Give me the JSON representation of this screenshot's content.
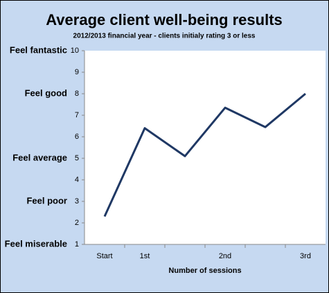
{
  "chart_data": {
    "type": "line",
    "title": "Average client well-being results",
    "subtitle": "2012/2013 financial year - clients initialy rating 3 or less",
    "x_label": "Number of sessions",
    "categories": [
      "Start",
      "1st",
      null,
      "2nd",
      null,
      "3rd"
    ],
    "series": [
      {
        "color": "#1f3864",
        "values": [
          2.3,
          6.4,
          5.1,
          7.35,
          6.45,
          8.0
        ]
      }
    ],
    "ylim": [
      1,
      10
    ],
    "yticks": [
      1,
      2,
      3,
      4,
      5,
      6,
      7,
      8,
      9,
      10
    ],
    "y_annotations": [
      {
        "value": 10,
        "label": "Feel fantastic"
      },
      {
        "value": 8,
        "label": "Feel good"
      },
      {
        "value": 5,
        "label": "Feel average"
      },
      {
        "value": 3,
        "label": "Feel poor"
      },
      {
        "value": 1,
        "label": "Feel miserable"
      }
    ],
    "grid": false
  }
}
